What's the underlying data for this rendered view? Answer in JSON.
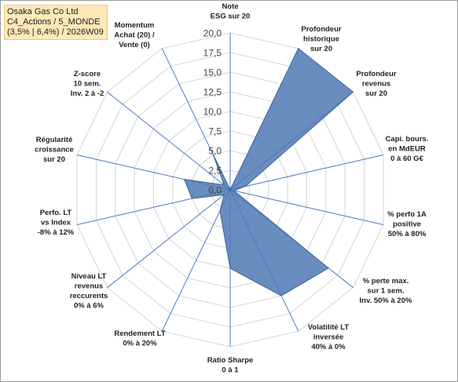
{
  "header": {
    "lines": [
      "Osaka Gas Co Ltd",
      "C4_Actions / 5_MONDE",
      "(3,5% | 6,4%) / 2026W09"
    ]
  },
  "chart_data": {
    "type": "radar",
    "rlim": [
      0,
      20
    ],
    "ticks": [
      "0,0",
      "2,5",
      "5,0",
      "7,5",
      "10,0",
      "12,5",
      "15,0",
      "17,5",
      "20,0"
    ],
    "tick_values": [
      0,
      2.5,
      5,
      7.5,
      10,
      12.5,
      15,
      17.5,
      20
    ],
    "grid": true,
    "series_color": "#4f79b4",
    "axes": [
      {
        "label": [
          "Note",
          "ESG sur 20"
        ],
        "value": 0
      },
      {
        "label": [
          "Profondeur",
          "historique",
          "sur 20"
        ],
        "value": 20
      },
      {
        "label": [
          "Profondeur",
          "revenus",
          "sur 20"
        ],
        "value": 20
      },
      {
        "label": [
          "Capi. bours.",
          "en MdEUR",
          "0 à 60 G€"
        ],
        "value": 2
      },
      {
        "label": [
          "% perfo 1A",
          "positive",
          "50% à 80%"
        ],
        "value": 0.5
      },
      {
        "label": [
          "% perte max.",
          "sur 1 sem.",
          "Inv. 50% à 20%"
        ],
        "value": 16
      },
      {
        "label": [
          "Volatilité LT",
          "inversée",
          "40% à 0%"
        ],
        "value": 15
      },
      {
        "label": [
          "Ratio Sharpe",
          "0 à 1"
        ],
        "value": 10
      },
      {
        "label": [
          "Rendement LT",
          "0% à 20%"
        ],
        "value": 3
      },
      {
        "label": [
          "Niveau LT",
          "revenus",
          "reccurents",
          "0% à 6%"
        ],
        "value": 1
      },
      {
        "label": [
          "Perfo. LT",
          "vs Index",
          "-8% à 12%"
        ],
        "value": 5
      },
      {
        "label": [
          "Régularité",
          "croissance",
          "sur 20"
        ],
        "value": 6
      },
      {
        "label": [
          "Z-score",
          "10 sem.",
          "Inv. 2 à -2"
        ],
        "value": 1
      },
      {
        "label": [
          "Momentum",
          "Achat (20) /",
          "Vente (0)"
        ],
        "value": 5
      }
    ]
  }
}
